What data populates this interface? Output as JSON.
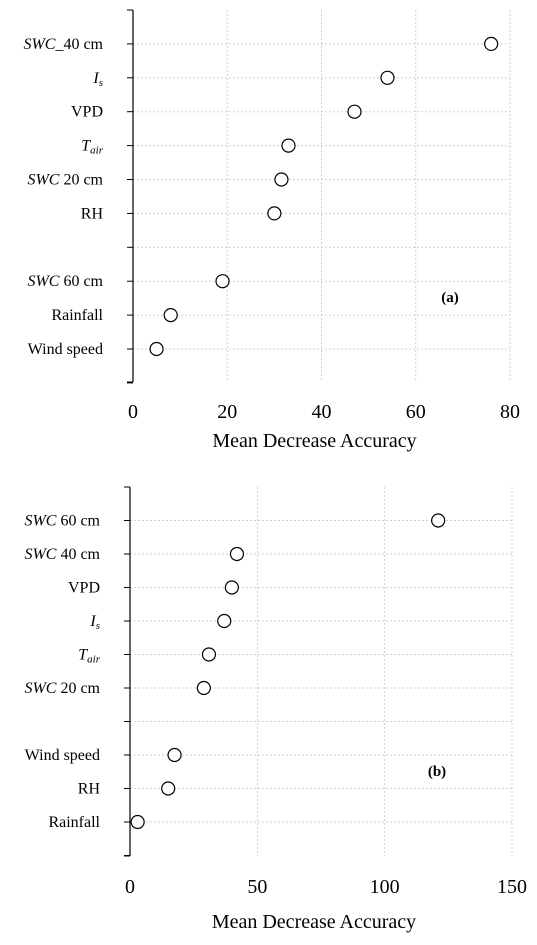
{
  "chart_data": [
    {
      "type": "scatter",
      "panel_label": "(a)",
      "xlabel": "Mean Decrease Accuracy",
      "xlim": [
        0,
        80
      ],
      "xticks": [
        0,
        20,
        40,
        60,
        80
      ],
      "grid": true,
      "categories": [
        {
          "main": "SWC",
          "rest": "_40 cm",
          "italic_main": true,
          "sub": ""
        },
        {
          "main": "I",
          "rest": "",
          "italic_main": true,
          "sub": "s"
        },
        {
          "main": "VPD",
          "rest": "",
          "italic_main": false,
          "sub": ""
        },
        {
          "main": "T",
          "rest": "",
          "italic_main": true,
          "sub": "air"
        },
        {
          "main": "SWC",
          "rest": " 20 cm",
          "italic_main": true,
          "sub": ""
        },
        {
          "main": "RH",
          "rest": "",
          "italic_main": false,
          "sub": ""
        },
        {
          "main": "",
          "rest": "",
          "italic_main": false,
          "sub": ""
        },
        {
          "main": "SWC",
          "rest": " 60 cm",
          "italic_main": true,
          "sub": ""
        },
        {
          "main": "Rainfall",
          "rest": "",
          "italic_main": false,
          "sub": ""
        },
        {
          "main": "Wind speed",
          "rest": "",
          "italic_main": false,
          "sub": ""
        }
      ],
      "values": [
        76,
        54,
        47,
        33,
        31.5,
        30,
        null,
        19,
        8,
        5
      ]
    },
    {
      "type": "scatter",
      "panel_label": "(b)",
      "xlabel": "Mean Decrease Accuracy",
      "xlim": [
        0,
        150
      ],
      "xticks": [
        0,
        50,
        100,
        150
      ],
      "grid": true,
      "categories": [
        {
          "main": "SWC",
          "rest": " 60 cm",
          "italic_main": true,
          "sub": ""
        },
        {
          "main": "SWC",
          "rest": " 40 cm",
          "italic_main": true,
          "sub": ""
        },
        {
          "main": "VPD",
          "rest": "",
          "italic_main": false,
          "sub": ""
        },
        {
          "main": "I",
          "rest": "",
          "italic_main": true,
          "sub": "s"
        },
        {
          "main": "T",
          "rest": "",
          "italic_main": true,
          "sub": "air"
        },
        {
          "main": "SWC",
          "rest": " 20 cm",
          "italic_main": true,
          "sub": ""
        },
        {
          "main": "",
          "rest": "",
          "italic_main": false,
          "sub": ""
        },
        {
          "main": "Wind speed",
          "rest": "",
          "italic_main": false,
          "sub": ""
        },
        {
          "main": "RH",
          "rest": "",
          "italic_main": false,
          "sub": ""
        },
        {
          "main": "Rainfall",
          "rest": "",
          "italic_main": false,
          "sub": ""
        }
      ],
      "values": [
        121,
        42,
        40,
        37,
        31,
        29,
        null,
        17.5,
        15,
        3
      ]
    }
  ]
}
